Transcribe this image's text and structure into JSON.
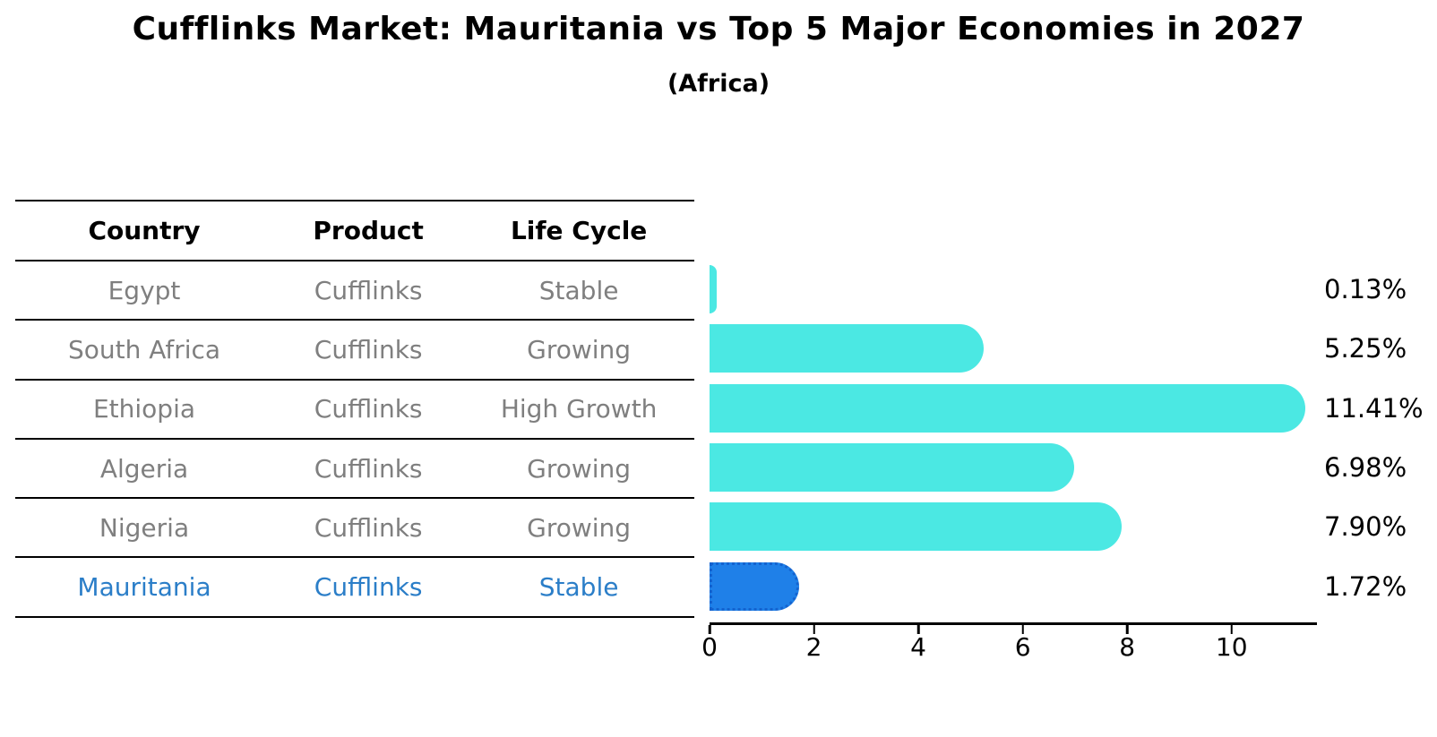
{
  "header": {
    "title": "Cufflinks Market: Mauritania vs Top 5 Major Economies in 2027",
    "subtitle": "(Africa)"
  },
  "table": {
    "columns": [
      "Country",
      "Product",
      "Life Cycle"
    ],
    "rows": [
      {
        "country": "Egypt",
        "product": "Cufflinks",
        "life_cycle": "Stable",
        "highlight": false
      },
      {
        "country": "South Africa",
        "product": "Cufflinks",
        "life_cycle": "Growing",
        "highlight": false
      },
      {
        "country": "Ethiopia",
        "product": "Cufflinks",
        "life_cycle": "High Growth",
        "highlight": false
      },
      {
        "country": "Algeria",
        "product": "Cufflinks",
        "life_cycle": "Growing",
        "highlight": false
      },
      {
        "country": "Nigeria",
        "product": "Cufflinks",
        "life_cycle": "Growing",
        "highlight": false
      },
      {
        "country": "Mauritania",
        "product": "Cufflinks",
        "life_cycle": "Stable",
        "highlight": true
      }
    ]
  },
  "chart_data": {
    "type": "bar",
    "orientation": "horizontal",
    "title": "Cufflinks Market: Mauritania vs Top 5 Major Economies in 2027",
    "subtitle": "(Africa)",
    "categories": [
      "Egypt",
      "South Africa",
      "Ethiopia",
      "Algeria",
      "Nigeria",
      "Mauritania"
    ],
    "values": [
      0.13,
      5.25,
      11.41,
      6.98,
      7.9,
      1.72
    ],
    "value_labels": [
      "0.13%",
      "5.25%",
      "11.41%",
      "6.98%",
      "7.90%",
      "1.72%"
    ],
    "x_ticks": [
      0,
      2,
      4,
      6,
      8,
      10
    ],
    "xlim": [
      0,
      11.6
    ],
    "grid": false,
    "legend": false,
    "highlight_index": 5,
    "colors": {
      "bar": "#4BE8E3",
      "highlight_bar": "#1F80E8",
      "highlight_border": "#1463CF",
      "highlight_text": "#2B7EC8",
      "row_text": "#7F7F7F"
    }
  }
}
